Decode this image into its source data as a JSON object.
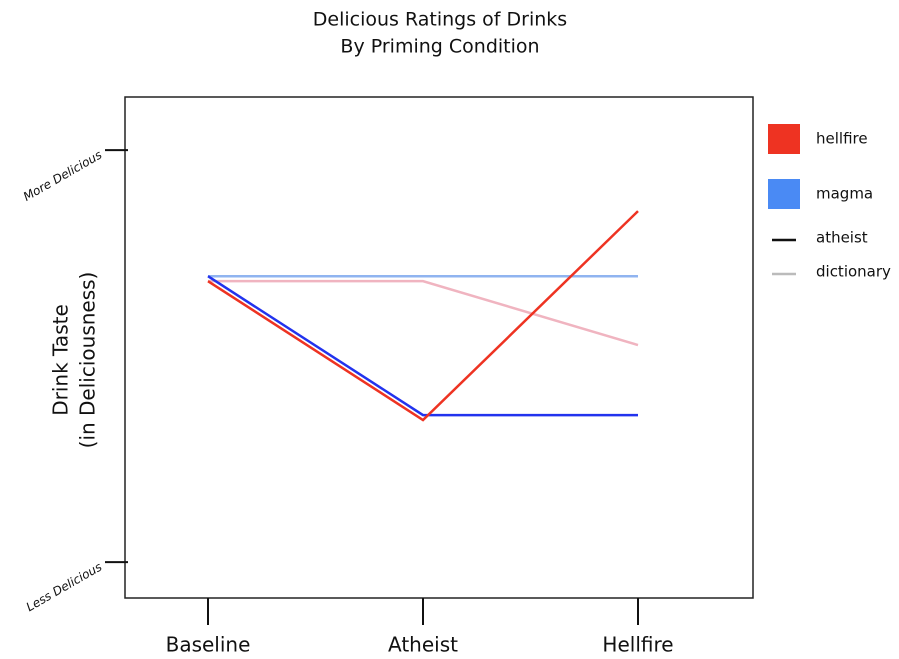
{
  "chart_data": {
    "type": "line",
    "title": [
      "Delicious Ratings of Drinks",
      "By Priming Condition"
    ],
    "y_label": [
      "Drink Taste",
      "(in Deliciousness)"
    ],
    "categories": [
      "Baseline",
      "Atheist",
      "Hellfire"
    ],
    "ylim": [
      -0.87,
      11.29
    ],
    "yticks": [
      {
        "value": 0,
        "label": "Less Delicious"
      },
      {
        "value": 10,
        "label": "More Delicious"
      }
    ],
    "series": [
      {
        "name": "hellfire",
        "color": "#ee3322",
        "legend_color": "#ee3322",
        "legend_marker": "square",
        "values": [
          6.82,
          3.45,
          8.52
        ]
      },
      {
        "name": "magma",
        "color": "#2233ee",
        "legend_color": "#4a8af4",
        "legend_marker": "square",
        "values": [
          6.94,
          3.57,
          3.57
        ]
      },
      {
        "name": "atheist",
        "color": "#90b4f0",
        "legend_color": "#111111",
        "legend_marker": "line",
        "values": [
          6.94,
          6.94,
          6.94
        ]
      },
      {
        "name": "dictionary",
        "color": "#f0b4c0",
        "legend_color": "#bbbbbb",
        "legend_marker": "line",
        "values": [
          6.82,
          6.82,
          5.27
        ]
      }
    ]
  }
}
